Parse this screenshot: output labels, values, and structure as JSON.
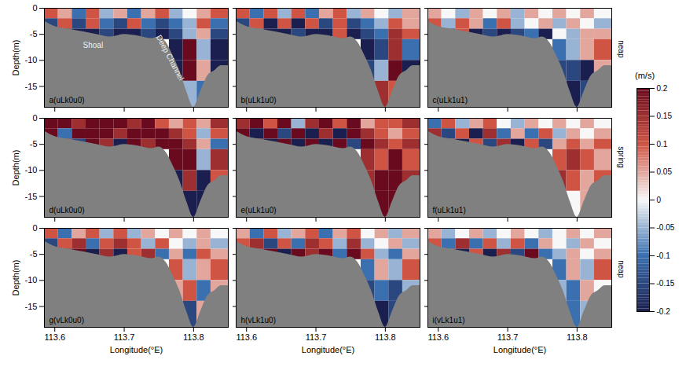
{
  "chart_data": {
    "type": "heatmap",
    "xlabel": "Longitude(°E)",
    "ylabel": "Depth(m)",
    "xlim": [
      113.585,
      113.85
    ],
    "xticks": [
      113.6,
      113.7,
      113.8
    ],
    "ylim": [
      -19,
      0
    ],
    "yticks": [
      0,
      -5,
      -10,
      -15
    ],
    "row_labels": [
      "neap",
      "spring",
      "neap"
    ],
    "longitude_edges": [
      113.585,
      113.605,
      113.625,
      113.645,
      113.665,
      113.685,
      113.705,
      113.725,
      113.745,
      113.765,
      113.785,
      113.805,
      113.825,
      113.85
    ],
    "depth_edges": [
      0,
      -2,
      -4,
      -6,
      -10,
      -14,
      -19
    ],
    "bathymetry": {
      "longitude": [
        113.585,
        113.6,
        113.62,
        113.64,
        113.66,
        113.68,
        113.7,
        113.72,
        113.74,
        113.75,
        113.76,
        113.77,
        113.78,
        113.79,
        113.8,
        113.81,
        113.82,
        113.83,
        113.84,
        113.85
      ],
      "depth": [
        -2.5,
        -3.5,
        -4,
        -4.5,
        -5,
        -5.5,
        -5,
        -5.3,
        -5.8,
        -5.5,
        -6.5,
        -9,
        -12,
        -16,
        -19,
        -16,
        -13,
        -12,
        -11,
        -11
      ]
    },
    "colorbar": {
      "label": "(m/s)",
      "range": [
        -0.2,
        0.2
      ],
      "ticks": [
        0.2,
        0.15,
        0.1,
        0.05,
        0,
        -0.05,
        -0.1,
        -0.15,
        -0.2
      ]
    },
    "panels": [
      {
        "label": "a(uLk0u0)",
        "annotations": [
          {
            "text": "Shoal",
            "x": 113.655,
            "y": -7.2
          },
          {
            "text": "Deep Channel",
            "x": 113.766,
            "y": -9.5
          }
        ],
        "cells": [
          [
            0.1,
            0.05,
            -0.1,
            0.1,
            -0.05,
            0.05,
            -0.1,
            0.05,
            0.1,
            -0.05,
            0,
            0.05,
            0.1
          ],
          [
            -0.15,
            0.1,
            -0.15,
            0.1,
            -0.1,
            -0.15,
            0.1,
            -0.1,
            -0.15,
            -0.1,
            -0.05,
            0.1,
            -0.1
          ],
          [
            -0.2,
            -0.2,
            -0.2,
            -0.2,
            -0.15,
            -0.2,
            -0.2,
            -0.15,
            -0.2,
            -0.15,
            -0.05,
            0.05,
            -0.15
          ],
          [
            null,
            null,
            null,
            null,
            null,
            null,
            null,
            null,
            null,
            -0.2,
            0.2,
            -0.05,
            -0.2
          ],
          [
            null,
            null,
            null,
            null,
            null,
            null,
            null,
            null,
            null,
            -0.2,
            0.2,
            0.05,
            -0.2
          ],
          [
            null,
            null,
            null,
            null,
            null,
            null,
            null,
            null,
            null,
            null,
            -0.05,
            -0.1,
            null
          ]
        ]
      },
      {
        "label": "b(uLk1u0)",
        "cells": [
          [
            0.1,
            -0.1,
            0.1,
            -0.05,
            0.1,
            -0.1,
            0.05,
            0.1,
            -0.05,
            0.05,
            0,
            -0.05,
            0.05
          ],
          [
            -0.15,
            0.1,
            -0.2,
            0.1,
            -0.2,
            0.1,
            -0.15,
            0.1,
            -0.15,
            -0.1,
            -0.05,
            0.1,
            0.05
          ],
          [
            -0.2,
            -0.15,
            -0.2,
            -0.2,
            -0.15,
            -0.2,
            -0.2,
            0.1,
            -0.2,
            -0.15,
            -0.1,
            0.15,
            0.1
          ],
          [
            null,
            null,
            null,
            null,
            null,
            null,
            null,
            null,
            null,
            -0.2,
            -0.15,
            0.15,
            -0.1
          ],
          [
            null,
            null,
            null,
            null,
            null,
            null,
            null,
            null,
            null,
            -0.15,
            -0.05,
            0.2,
            -0.2
          ],
          [
            null,
            null,
            null,
            null,
            null,
            null,
            null,
            null,
            null,
            null,
            0.15,
            0.1,
            null
          ]
        ]
      },
      {
        "label": "c(uLk1u1)",
        "cells": [
          [
            0.05,
            0,
            -0.05,
            0.05,
            0,
            0.05,
            -0.05,
            0.05,
            0,
            0.05,
            0,
            0.05,
            0
          ],
          [
            0.1,
            -0.05,
            0.1,
            0.05,
            -0.1,
            0.1,
            -0.05,
            0,
            0.05,
            -0.05,
            0.05,
            0,
            -0.05
          ],
          [
            -0.2,
            -0.2,
            0.1,
            -0.2,
            -0.15,
            -0.2,
            -0.15,
            -0.1,
            -0.2,
            0,
            -0.05,
            0.05,
            0.05
          ],
          [
            null,
            null,
            null,
            null,
            null,
            null,
            null,
            null,
            null,
            -0.1,
            -0.05,
            0.05,
            0.1
          ],
          [
            null,
            null,
            null,
            null,
            null,
            null,
            null,
            null,
            null,
            -0.15,
            -0.15,
            -0.2,
            0.05
          ],
          [
            null,
            null,
            null,
            null,
            null,
            null,
            null,
            null,
            null,
            null,
            -0.2,
            -0.15,
            null
          ]
        ]
      },
      {
        "label": "d(uLk0u0)",
        "cells": [
          [
            0.2,
            0.2,
            0.15,
            0.2,
            0.2,
            0.2,
            0.15,
            0.2,
            0.1,
            0.05,
            0.1,
            0.05,
            0.15
          ],
          [
            0.2,
            -0.1,
            0.2,
            0.2,
            0.2,
            0.15,
            0.2,
            0.2,
            0.2,
            0.15,
            0.1,
            -0.05,
            0.1
          ],
          [
            -0.2,
            0.2,
            -0.15,
            0.2,
            0.15,
            -0.2,
            0.2,
            0.15,
            0.2,
            0.2,
            0.15,
            0.05,
            -0.1
          ],
          [
            null,
            null,
            null,
            null,
            null,
            null,
            null,
            null,
            null,
            0.2,
            0.2,
            -0.05,
            0.15
          ],
          [
            null,
            null,
            null,
            null,
            null,
            null,
            null,
            null,
            null,
            -0.2,
            0.15,
            -0.2,
            0.1
          ],
          [
            null,
            null,
            null,
            null,
            null,
            null,
            null,
            null,
            null,
            null,
            -0.2,
            -0.2,
            null
          ]
        ]
      },
      {
        "label": "e(uLk1u0)",
        "cells": [
          [
            0.15,
            0.2,
            0.1,
            0.2,
            -0.05,
            0.15,
            0.2,
            0.1,
            0.2,
            0.05,
            0.1,
            0.1,
            0.15
          ],
          [
            0.2,
            -0.2,
            0.2,
            -0.15,
            0.2,
            -0.2,
            0.15,
            -0.2,
            0.2,
            0.15,
            0.1,
            0.05,
            0.1
          ],
          [
            -0.2,
            0.2,
            -0.2,
            0.2,
            -0.2,
            0.2,
            -0.2,
            0.2,
            -0.15,
            0.2,
            0.15,
            0.1,
            0.15
          ],
          [
            null,
            null,
            null,
            null,
            null,
            null,
            null,
            null,
            null,
            0.15,
            0.1,
            0.2,
            0.1
          ],
          [
            null,
            null,
            null,
            null,
            null,
            null,
            null,
            null,
            null,
            0.15,
            0.2,
            0.2,
            0.15
          ],
          [
            null,
            null,
            null,
            null,
            null,
            null,
            null,
            null,
            null,
            null,
            0.2,
            0.2,
            null
          ]
        ]
      },
      {
        "label": "f(uLk1u1)",
        "cells": [
          [
            -0.1,
            0.1,
            -0.05,
            0.05,
            0.1,
            0,
            -0.05,
            0.05,
            0,
            0.05,
            0,
            0.05,
            0
          ],
          [
            0.15,
            -0.15,
            0.1,
            -0.2,
            0.15,
            -0.1,
            0.05,
            -0.1,
            0.1,
            -0.05,
            0.05,
            0,
            0.05
          ],
          [
            -0.2,
            0.15,
            -0.2,
            0.1,
            -0.15,
            0.15,
            -0.2,
            0.1,
            -0.15,
            0.05,
            0.1,
            0.05,
            0.1
          ],
          [
            null,
            null,
            null,
            null,
            null,
            null,
            null,
            null,
            null,
            0.1,
            0.15,
            0.1,
            0.05
          ],
          [
            null,
            null,
            null,
            null,
            null,
            null,
            null,
            null,
            null,
            0.15,
            0.1,
            0.05,
            0.1
          ],
          [
            null,
            null,
            null,
            null,
            null,
            null,
            null,
            null,
            null,
            null,
            0,
            0.05,
            null
          ]
        ]
      },
      {
        "label": "g(vLk0u0)",
        "cells": [
          [
            0.1,
            -0.1,
            0.05,
            0.1,
            -0.05,
            0.1,
            -0.05,
            0.05,
            0,
            0.05,
            0,
            0.05,
            0
          ],
          [
            -0.15,
            0.1,
            0.15,
            -0.1,
            0.1,
            0.15,
            0.1,
            -0.05,
            0.1,
            0,
            -0.05,
            0.05,
            -0.05
          ],
          [
            -0.2,
            -0.2,
            0.2,
            -0.2,
            0.15,
            -0.2,
            0.1,
            0.15,
            -0.1,
            0.05,
            -0.1,
            0.1,
            0.05
          ],
          [
            null,
            null,
            null,
            null,
            null,
            null,
            null,
            null,
            null,
            0.1,
            -0.05,
            0.05,
            0.1
          ],
          [
            null,
            null,
            null,
            null,
            null,
            null,
            null,
            null,
            null,
            0.05,
            0.1,
            -0.1,
            0.05
          ],
          [
            null,
            null,
            null,
            null,
            null,
            null,
            null,
            null,
            null,
            null,
            -0.15,
            0.05,
            null
          ]
        ]
      },
      {
        "label": "h(vLk1u0)",
        "cells": [
          [
            0.05,
            -0.1,
            0.1,
            -0.05,
            0.05,
            0.1,
            -0.1,
            0.05,
            0.1,
            0,
            0.05,
            -0.05,
            0.05
          ],
          [
            0.1,
            0.15,
            -0.15,
            0.1,
            -0.1,
            0.15,
            0.1,
            -0.05,
            0.15,
            -0.05,
            0,
            0.05,
            -0.05
          ],
          [
            -0.2,
            0.2,
            0.2,
            -0.2,
            0.2,
            0.15,
            0.2,
            -0.1,
            0.2,
            0.1,
            -0.05,
            -0.1,
            0.05
          ],
          [
            null,
            null,
            null,
            null,
            null,
            null,
            null,
            null,
            null,
            -0.1,
            0.05,
            -0.05,
            0.1
          ],
          [
            null,
            null,
            null,
            null,
            null,
            null,
            null,
            null,
            null,
            -0.15,
            -0.1,
            -0.15,
            -0.05
          ],
          [
            null,
            null,
            null,
            null,
            null,
            null,
            null,
            null,
            null,
            null,
            -0.2,
            -0.15,
            null
          ]
        ]
      },
      {
        "label": "i(vLk1u1)",
        "cells": [
          [
            0.05,
            -0.05,
            0,
            0.05,
            -0.05,
            0,
            0.05,
            0,
            -0.05,
            0,
            0.05,
            0,
            0.05
          ],
          [
            0.1,
            -0.1,
            0.15,
            -0.1,
            0.1,
            -0.05,
            0.1,
            -0.1,
            0.05,
            0,
            -0.05,
            0.05,
            0
          ],
          [
            -0.2,
            0.15,
            -0.2,
            0.1,
            -0.2,
            0.15,
            -0.15,
            0.2,
            -0.1,
            -0.05,
            0.05,
            0,
            0.05
          ],
          [
            null,
            null,
            null,
            null,
            null,
            null,
            null,
            null,
            null,
            -0.1,
            0.05,
            -0.05,
            0.1
          ],
          [
            null,
            null,
            null,
            null,
            null,
            null,
            null,
            null,
            null,
            -0.05,
            -0.1,
            0.05,
            0
          ],
          [
            null,
            null,
            null,
            null,
            null,
            null,
            null,
            null,
            null,
            null,
            -0.1,
            -0.05,
            null
          ]
        ]
      }
    ]
  }
}
